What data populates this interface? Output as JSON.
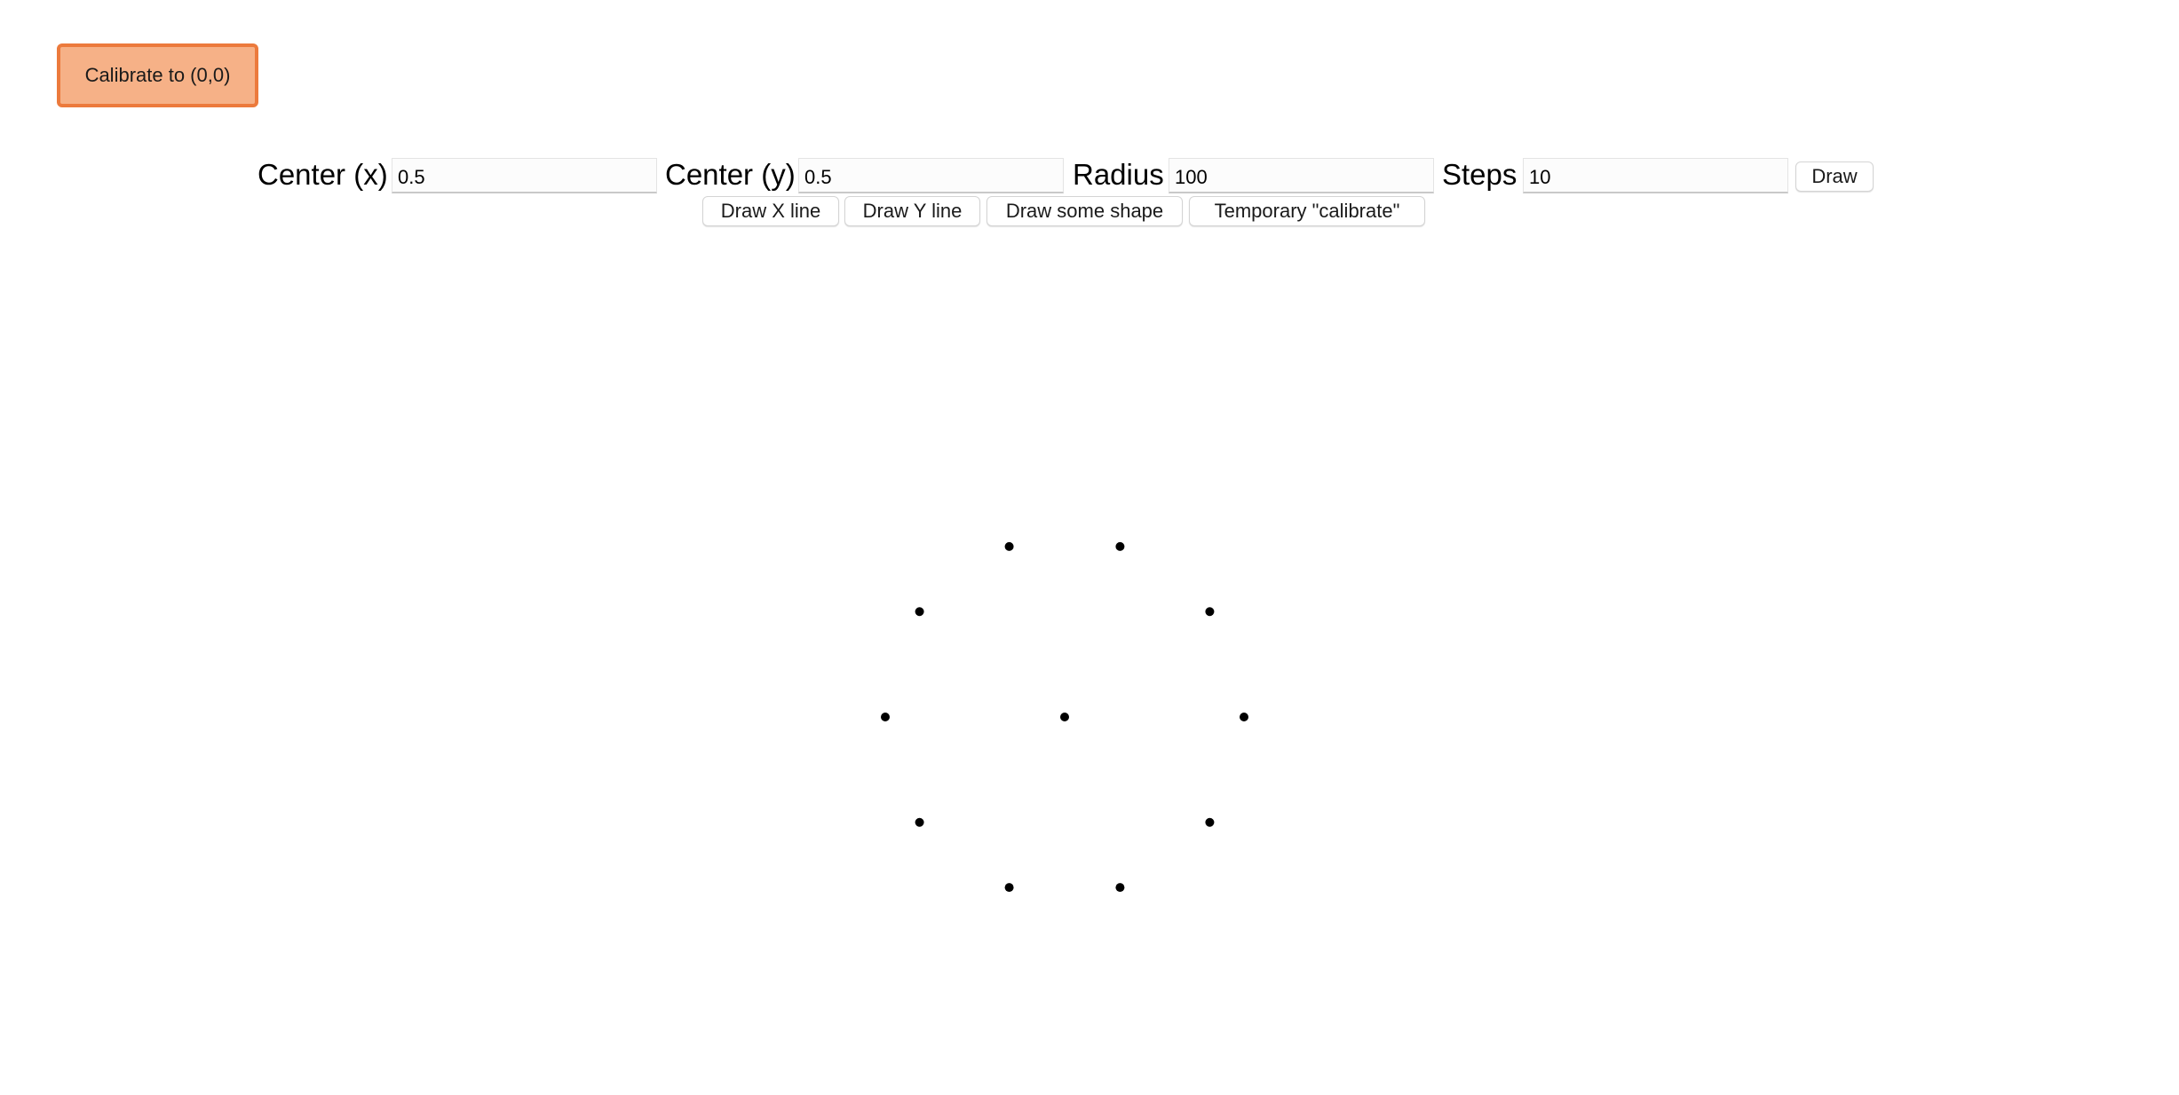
{
  "calibrate_button": {
    "label": "Calibrate to (0,0)"
  },
  "controls": {
    "center_x": {
      "label": "Center (x)",
      "value": "0.5"
    },
    "center_y": {
      "label": "Center (y)",
      "value": "0.5"
    },
    "radius": {
      "label": "Radius",
      "value": "100"
    },
    "steps": {
      "label": "Steps",
      "value": "10"
    },
    "draw_label": "Draw"
  },
  "actions": {
    "draw_x_line": "Draw X line",
    "draw_y_line": "Draw Y line",
    "draw_some_shape": "Draw some shape",
    "temporary_calibrate": "Temporary \"calibrate\""
  },
  "colors": {
    "calibrate_bg": "#f6b187",
    "calibrate_border": "#ec7a3c",
    "dot": "#000000"
  }
}
